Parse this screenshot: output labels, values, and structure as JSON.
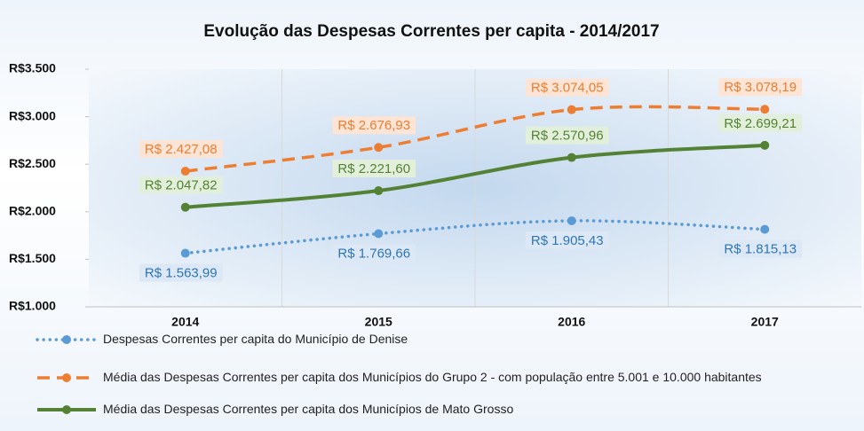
{
  "chart_data": {
    "type": "line",
    "title": "Evolução das Despesas Correntes per capita - 2014/2017",
    "categories": [
      "2014",
      "2015",
      "2016",
      "2017"
    ],
    "ylim": [
      1000,
      3500
    ],
    "yticks": [
      {
        "value": 1000,
        "label": "R$1.000"
      },
      {
        "value": 1500,
        "label": "R$1.500"
      },
      {
        "value": 2000,
        "label": "R$2.000"
      },
      {
        "value": 2500,
        "label": "R$2.500"
      },
      {
        "value": 3000,
        "label": "R$3.000"
      },
      {
        "value": 3500,
        "label": "R$3.500"
      }
    ],
    "series": [
      {
        "name": "Despesas Correntes  per capita do Município de Denise",
        "color": "#5b9bd5",
        "line_style": "dotted",
        "label_position": "below",
        "values": [
          1563.99,
          1769.66,
          1905.43,
          1815.13
        ],
        "value_labels": [
          "R$ 1.563,99",
          "R$ 1.769,66",
          "R$ 1.905,43",
          "R$ 1.815,13"
        ]
      },
      {
        "name": "Média das Despesas Correntes  per capita dos Municípios do Grupo 2 - com população entre 5.001 e 10.000 habitantes",
        "color": "#ed7d31",
        "line_style": "dashed",
        "label_position": "above",
        "values": [
          2427.08,
          2676.93,
          3074.05,
          3078.19
        ],
        "value_labels": [
          "R$ 2.427,08",
          "R$ 2.676,93",
          "R$ 3.074,05",
          "R$ 3.078,19"
        ]
      },
      {
        "name": "Média das Despesas Correntes per capita dos Municípios de Mato Grosso",
        "color": "#548235",
        "line_style": "solid",
        "label_position": "above",
        "values": [
          2047.82,
          2221.6,
          2570.96,
          2699.21
        ],
        "value_labels": [
          "R$ 2.047,82",
          "R$ 2.221,60",
          "R$ 2.570,96",
          "R$ 2.699,21"
        ]
      }
    ]
  }
}
